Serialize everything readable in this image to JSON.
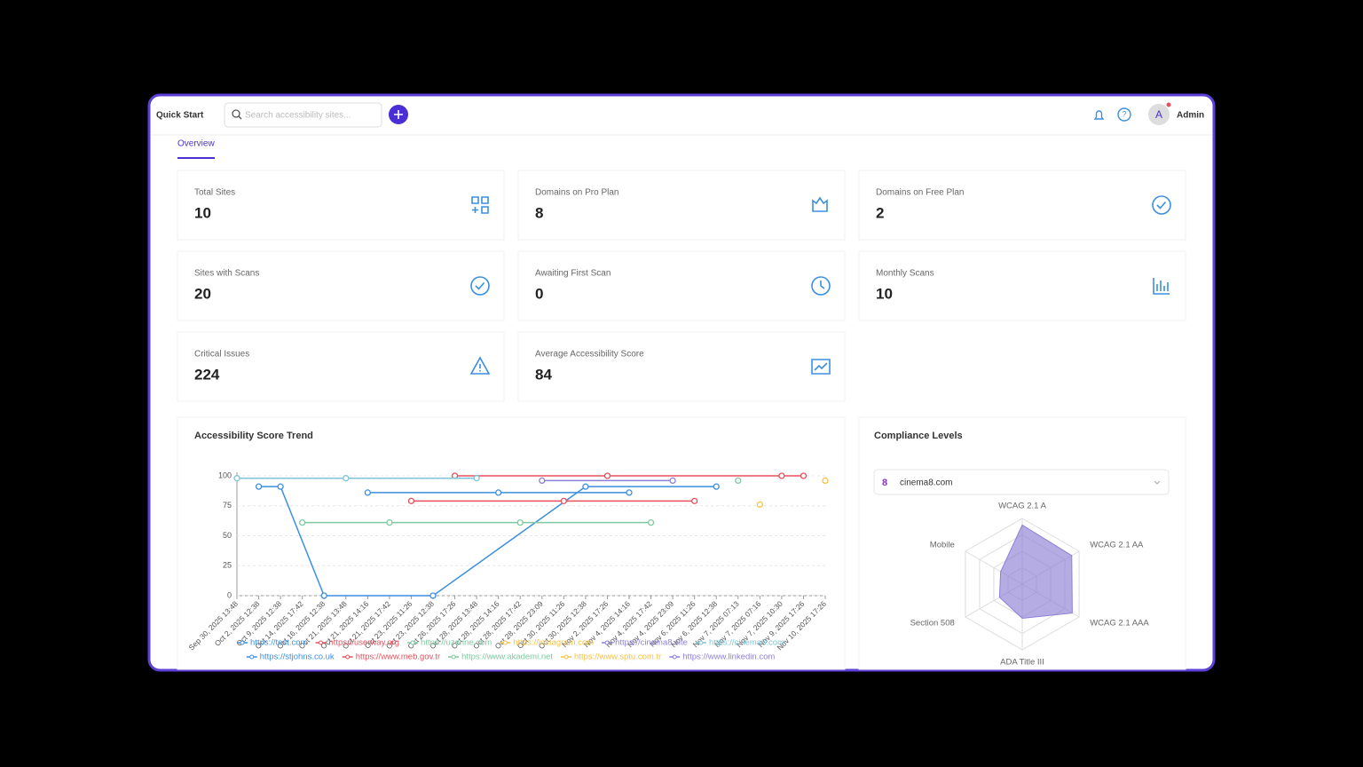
{
  "header": {
    "title": "Quick Start",
    "search_placeholder": "Search accessibility sites...",
    "user": "Admin",
    "avatar": "A"
  },
  "tab": "Overview",
  "stats": [
    {
      "label": "Total Sites",
      "value": 10
    },
    {
      "label": "Domains on Pro Plan",
      "value": 8
    },
    {
      "label": "Domains on Free Plan",
      "value": 2
    },
    {
      "label": "Sites with Scans",
      "value": 20
    },
    {
      "label": "Awaiting First Scan",
      "value": 0
    },
    {
      "label": "Monthly Scans",
      "value": 10
    },
    {
      "label": "Critical Issues",
      "value": 224
    },
    {
      "label": "Average Accessibility Score",
      "value": 84
    }
  ],
  "chart_data": [
    {
      "type": "line",
      "title": "Accessibility Score Trend",
      "categories": [
        "Sep 30, 2025 13:48",
        "Oct 2, 2025 12:38",
        "Oct 9, 2025 12:38",
        "Oct 14, 2025 17:42",
        "Oct 16, 2025 12:38",
        "Oct 21, 2025 13:48",
        "Oct 21, 2025 14:16",
        "Oct 21, 2025 17:42",
        "Oct 23, 2025 11:26",
        "Oct 23, 2025 12:38",
        "Oct 26, 2025 17:26",
        "Oct 28, 2025 13:48",
        "Oct 28, 2025 14:16",
        "Oct 28, 2025 17:42",
        "Oct 28, 2025 23:09",
        "Oct 30, 2025 11:26",
        "Oct 30, 2025 12:38",
        "Nov 2, 2025 17:26",
        "Nov 4, 2025 14:16",
        "Nov 4, 2025 17:42",
        "Nov 4, 2025 23:09",
        "Nov 6, 2025 11:26",
        "Nov 6, 2025 12:38",
        "Nov 7, 2025 07:13",
        "Nov 7, 2025 07:16",
        "Nov 7, 2025 10:30",
        "Nov 9, 2025 17:26",
        "Nov 10, 2025 17:26"
      ],
      "ylim": [
        0,
        100
      ],
      "yticks": [
        0,
        25,
        50,
        75,
        100
      ],
      "grid": true,
      "series": [
        {
          "name": "https://test.com",
          "color": "#3b8fe0",
          "x": [
            "Oct 2, 2025 12:38",
            "Oct 9, 2025 12:38",
            "Oct 16, 2025 12:38",
            "Oct 23, 2025 12:38",
            "Oct 30, 2025 12:38",
            "Nov 6, 2025 12:38"
          ],
          "values": [
            91,
            91,
            0,
            0,
            91,
            91
          ]
        },
        {
          "name": "https://userway.org",
          "color": "#e8505b",
          "x": [
            "Oct 26, 2025 17:26",
            "Nov 2, 2025 17:26",
            "Nov 7, 2025 10:30",
            "Nov 9, 2025 17:26"
          ],
          "values": [
            100,
            100,
            100,
            100
          ]
        },
        {
          "name": "https://uzerine.com",
          "color": "#7ec9a0",
          "x": [
            "Oct 14, 2025 17:42",
            "Oct 21, 2025 17:42",
            "Oct 28, 2025 17:42",
            "Nov 4, 2025 17:42"
          ],
          "values": [
            61,
            61,
            61,
            61
          ]
        },
        {
          "name": "https://instagram.com",
          "color": "#f5c242",
          "x": [
            "Nov 7, 2025 07:16"
          ],
          "values": [
            76
          ]
        },
        {
          "name": "https://cinema8.site",
          "color": "#8e7fd6",
          "x": [
            "Oct 28, 2025 23:09",
            "Nov 4, 2025 23:09"
          ],
          "values": [
            96,
            96
          ]
        },
        {
          "name": "https://cinema8.com",
          "color": "#7cc4d6",
          "x": [
            "Sep 30, 2025 13:48",
            "Oct 21, 2025 13:48",
            "Oct 28, 2025 13:48"
          ],
          "values": [
            98,
            98,
            98
          ]
        },
        {
          "name": "https://stjohns.co.uk",
          "color": "#3b8fe0",
          "x": [
            "Oct 21, 2025 14:16",
            "Oct 28, 2025 14:16",
            "Nov 4, 2025 14:16"
          ],
          "values": [
            86,
            86,
            86
          ]
        },
        {
          "name": "https://www.meb.gov.tr",
          "color": "#e8505b",
          "x": [
            "Oct 23, 2025 11:26",
            "Oct 30, 2025 11:26",
            "Nov 6, 2025 11:26"
          ],
          "values": [
            79,
            79,
            79
          ]
        },
        {
          "name": "https://www.akademi.net",
          "color": "#7ec9a0",
          "x": [
            "Nov 7, 2025 07:13"
          ],
          "values": [
            96
          ]
        },
        {
          "name": "https://www.sptu.com.tr",
          "color": "#f5c242",
          "x": [
            "Nov 10, 2025 17:26"
          ],
          "values": [
            96
          ]
        },
        {
          "name": "https://www.linkedin.com",
          "color": "#8e7fd6",
          "x": [],
          "values": []
        }
      ]
    },
    {
      "type": "radar",
      "title": "Compliance Levels",
      "selected": "cinema8.com",
      "color": "#8e7fd6",
      "categories": [
        "WCAG 2.1 A",
        "WCAG 2.1 AA",
        "WCAG 2.1 AAA",
        "ADA Title III",
        "Section 508",
        "Mobile"
      ],
      "values": [
        90,
        87,
        88,
        52,
        40,
        38
      ],
      "rlim": [
        0,
        100
      ]
    }
  ]
}
